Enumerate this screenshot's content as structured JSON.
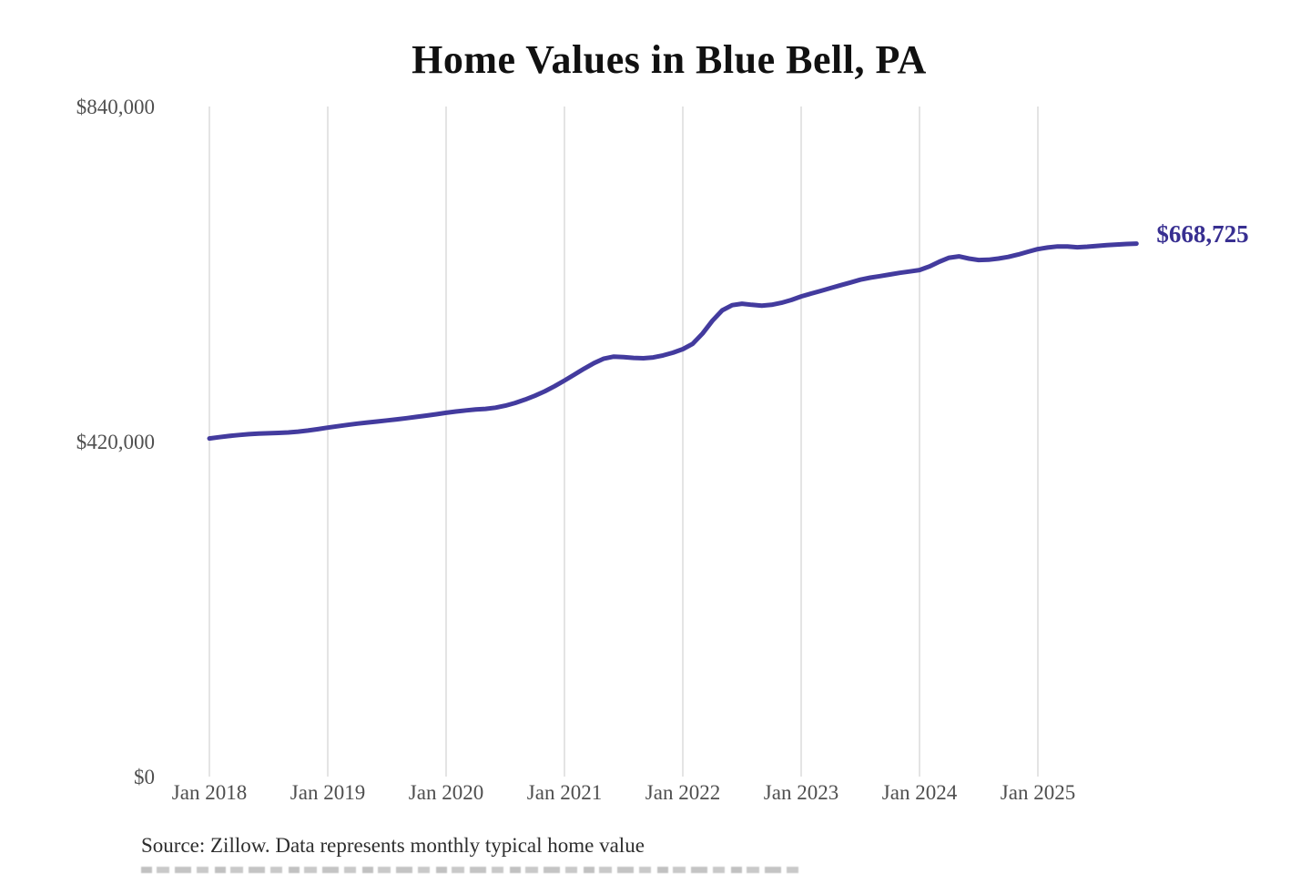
{
  "title": "Home Values in Blue Bell, PA",
  "end_label": "$668,725",
  "footer": {
    "source": "Source: Zillow. Data represents monthly typical home value"
  },
  "colors": {
    "line": "#433b9e",
    "end_label": "#382f91",
    "title": "#111111",
    "axis_labels": "#4f4f4f",
    "gridline": "#c9c9c9",
    "source_text": "#2e2e2e",
    "background": "#ffffff"
  },
  "chart_data": {
    "type": "line",
    "title": "Home Values in Blue Bell, PA",
    "frequency": "monthly",
    "x_start": "2018-01",
    "x_end": "2025-11",
    "x_tick_labels": [
      "Jan 2018",
      "Jan 2019",
      "Jan 2020",
      "Jan 2021",
      "Jan 2022",
      "Jan 2023",
      "Jan 2024",
      "Jan 2025"
    ],
    "y_ticks": [
      {
        "label": "$840,000",
        "value": 840000
      },
      {
        "label": "$420,000",
        "value": 420000
      },
      {
        "label": "$0",
        "value": 0
      }
    ],
    "ylim": [
      0,
      840000
    ],
    "grid": "vertical-only",
    "legend": "none",
    "series": [
      {
        "name": "Typical home value",
        "end_value": 668725,
        "values": [
          424400,
          426000,
          427500,
          428800,
          429800,
          430500,
          431000,
          431400,
          432000,
          433000,
          434400,
          436100,
          438000,
          439800,
          441500,
          443000,
          444400,
          445700,
          447000,
          448400,
          449900,
          451500,
          453100,
          454800,
          456600,
          458200,
          459600,
          460700,
          461600,
          463000,
          465500,
          469000,
          473200,
          478000,
          483500,
          490000,
          497000,
          504500,
          512000,
          519000,
          524500,
          527000,
          526500,
          525500,
          525000,
          526000,
          528500,
          532000,
          536400,
          543000,
          556000,
          572000,
          585000,
          591500,
          593400,
          592000,
          591000,
          592000,
          594500,
          598000,
          602500,
          606000,
          609500,
          613000,
          616500,
          620000,
          623500,
          626000,
          628000,
          630000,
          632000,
          633800,
          635600,
          640000,
          646000,
          651000,
          652700,
          650000,
          648100,
          648500,
          650000,
          652000,
          655000,
          658500,
          661800,
          663800,
          665200,
          665000,
          664100,
          664800,
          665800,
          666800,
          667600,
          668200,
          668725
        ]
      }
    ]
  }
}
